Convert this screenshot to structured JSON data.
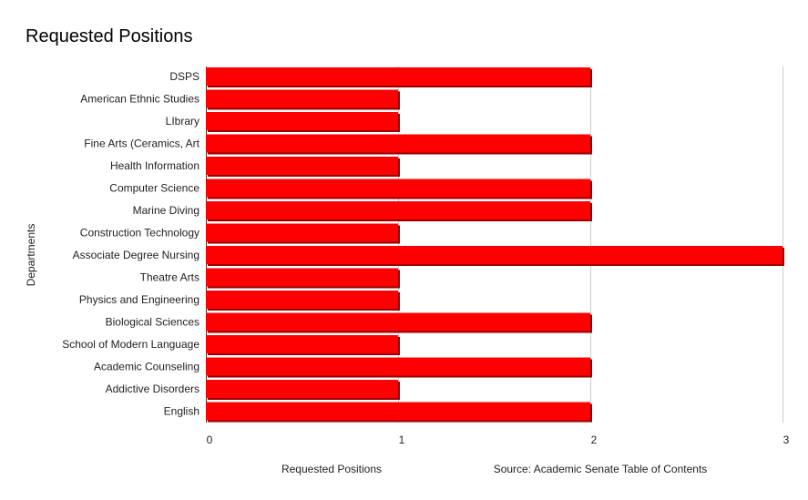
{
  "chart_data": {
    "type": "bar",
    "orientation": "horizontal",
    "title": "Requested Positions",
    "xlabel": "Requested Positions",
    "ylabel": "Departments",
    "source_note": "Source: Academic Senate Table of Contents",
    "categories": [
      "DSPS",
      "American Ethnic Studies",
      "LIbrary",
      "Fine Arts (Ceramics, Art",
      "Health Information",
      "Computer Science",
      "Marine Diving",
      "Construction Technology",
      "Associate Degree Nursing",
      "Theatre Arts",
      "Physics and Engineering",
      "Biological Sciences",
      "School of Modern Language",
      "Academic Counseling",
      "Addictive Disorders",
      "English"
    ],
    "values": [
      2,
      1,
      1,
      2,
      1,
      2,
      2,
      1,
      3,
      1,
      1,
      2,
      1,
      2,
      1,
      2
    ],
    "xlim": [
      0,
      3
    ],
    "xticks": [
      "0",
      "1",
      "2",
      "3"
    ],
    "grid": true,
    "bar_color": "#ff0000",
    "bar_shadow_color": "#990000"
  }
}
